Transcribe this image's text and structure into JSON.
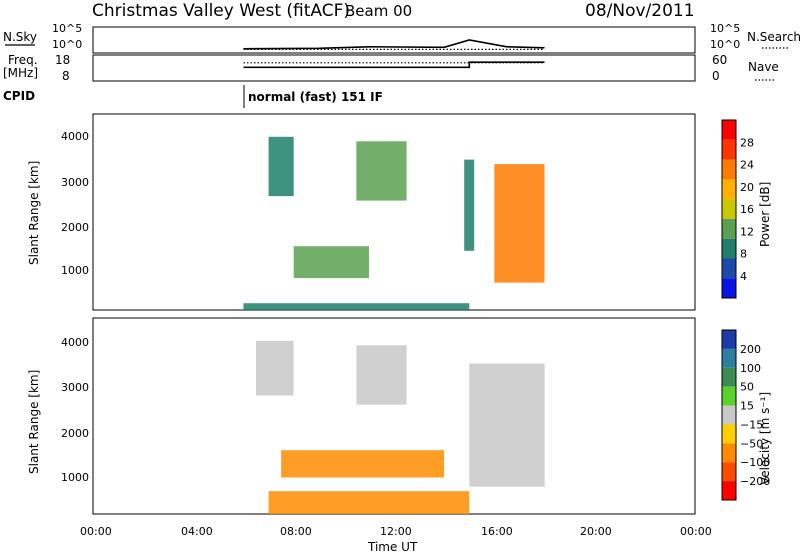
{
  "header": {
    "station": "Christmas Valley West (fitACF)",
    "beam": "Beam 00",
    "date": "08/Nov/2011"
  },
  "panels": {
    "nsky": {
      "left_label": "N.Sky",
      "left_ticks": [
        "10^5",
        "10^0"
      ],
      "right_ticks": [
        "10^5",
        "10^0"
      ],
      "right_label": "N.Search"
    },
    "freq": {
      "left_label_1": "Freq.",
      "left_label_2": "[MHz]",
      "left_ticks": [
        "18",
        "8"
      ],
      "right_ticks": [
        "60",
        "0"
      ],
      "right_label": "Nave"
    },
    "cpid": {
      "label": "CPID",
      "mode_text": "normal (fast) 151 IF"
    },
    "power": {
      "ylabel": "Slant Range [km]",
      "yticks": [
        "4000",
        "3000",
        "2000",
        "1000"
      ],
      "cbar_label": "Power [dB]",
      "cbar_ticks": [
        "28",
        "24",
        "20",
        "16",
        "12",
        "8",
        "4"
      ],
      "cbar_colors": [
        "#ff0000",
        "#ff3300",
        "#ff7a00",
        "#ffb000",
        "#c8c800",
        "#5aa050",
        "#1f7f6a",
        "#1c4aa8",
        "#0a14e6"
      ]
    },
    "velocity": {
      "ylabel": "Slant Range [km]",
      "yticks": [
        "4000",
        "3000",
        "2000",
        "1000"
      ],
      "cbar_label": "Velocity [m s⁻¹]",
      "cbar_ticks": [
        "200",
        "100",
        "50",
        "15",
        "−15",
        "−50",
        "−100",
        "−200"
      ],
      "cbar_colors": [
        "#1c3aa8",
        "#2e7e9e",
        "#3a8c50",
        "#5ad22a",
        "#c8c8c8",
        "#ffd000",
        "#ff8c00",
        "#ff4a00",
        "#ff0000"
      ]
    },
    "xaxis": {
      "ticks": [
        "00:00",
        "04:00",
        "08:00",
        "12:00",
        "16:00",
        "20:00",
        "00:00"
      ],
      "label": "Time UT"
    }
  },
  "chart_data": [
    {
      "type": "line",
      "title": "N.Sky / N.Search",
      "x_unit": "UT hour",
      "xlim": [
        0,
        24
      ],
      "series": [
        {
          "name": "N.Sky",
          "points": [
            [
              6.0,
              0.8
            ],
            [
              9.0,
              0.9
            ],
            [
              11.0,
              1.2
            ],
            [
              14.0,
              1.1
            ],
            [
              15.0,
              2.5
            ],
            [
              16.5,
              1.2
            ],
            [
              18.0,
              1.0
            ]
          ]
        },
        {
          "name": "N.Search",
          "points": [
            [
              6.0,
              0.7
            ],
            [
              18.0,
              0.7
            ]
          ]
        }
      ]
    },
    {
      "type": "line",
      "title": "Freq. / Nave",
      "x_unit": "UT hour",
      "xlim": [
        0,
        24
      ],
      "series": [
        {
          "name": "Freq. [MHz]",
          "points": [
            [
              6.0,
              10.5
            ],
            [
              15.0,
              10.5
            ],
            [
              15.0,
              14.5
            ],
            [
              18.0,
              14.5
            ]
          ]
        },
        {
          "name": "Nave",
          "points": [
            [
              6.0,
              14
            ],
            [
              18.0,
              14
            ]
          ]
        }
      ]
    },
    {
      "type": "heatmap",
      "title": "Power [dB]",
      "x_unit": "UT hour",
      "y_unit": "Slant Range [km]",
      "xlim": [
        0,
        24
      ],
      "ylim": [
        200,
        4500
      ],
      "regions": [
        {
          "t0": 7.0,
          "t1": 8.0,
          "r0": 2700,
          "r1": 4000,
          "value": 6
        },
        {
          "t0": 10.5,
          "t1": 12.5,
          "r0": 2600,
          "r1": 3900,
          "value": 9
        },
        {
          "t0": 8.0,
          "t1": 11.0,
          "r0": 900,
          "r1": 1600,
          "value": 10
        },
        {
          "t0": 6.0,
          "t1": 15.0,
          "r0": 200,
          "r1": 350,
          "value": 6
        },
        {
          "t0": 14.8,
          "t1": 15.2,
          "r0": 1500,
          "r1": 3500,
          "value": 6
        },
        {
          "t0": 16.0,
          "t1": 18.0,
          "r0": 800,
          "r1": 3400,
          "value": 24
        }
      ]
    },
    {
      "type": "heatmap",
      "title": "Velocity",
      "x_unit": "UT hour",
      "y_unit": "Slant Range [km]",
      "xlim": [
        0,
        24
      ],
      "ylim": [
        200,
        4500
      ],
      "regions": [
        {
          "t0": 6.5,
          "t1": 8.0,
          "r0": 2800,
          "r1": 4000,
          "value": 0
        },
        {
          "t0": 10.5,
          "t1": 12.5,
          "r0": 2600,
          "r1": 3900,
          "value": 0
        },
        {
          "t0": 7.5,
          "t1": 14.0,
          "r0": 1000,
          "r1": 1600,
          "value": -50
        },
        {
          "t0": 7.0,
          "t1": 15.0,
          "r0": 200,
          "r1": 700,
          "value": -50
        },
        {
          "t0": 15.0,
          "t1": 18.0,
          "r0": 800,
          "r1": 3500,
          "value": 0
        }
      ]
    }
  ]
}
